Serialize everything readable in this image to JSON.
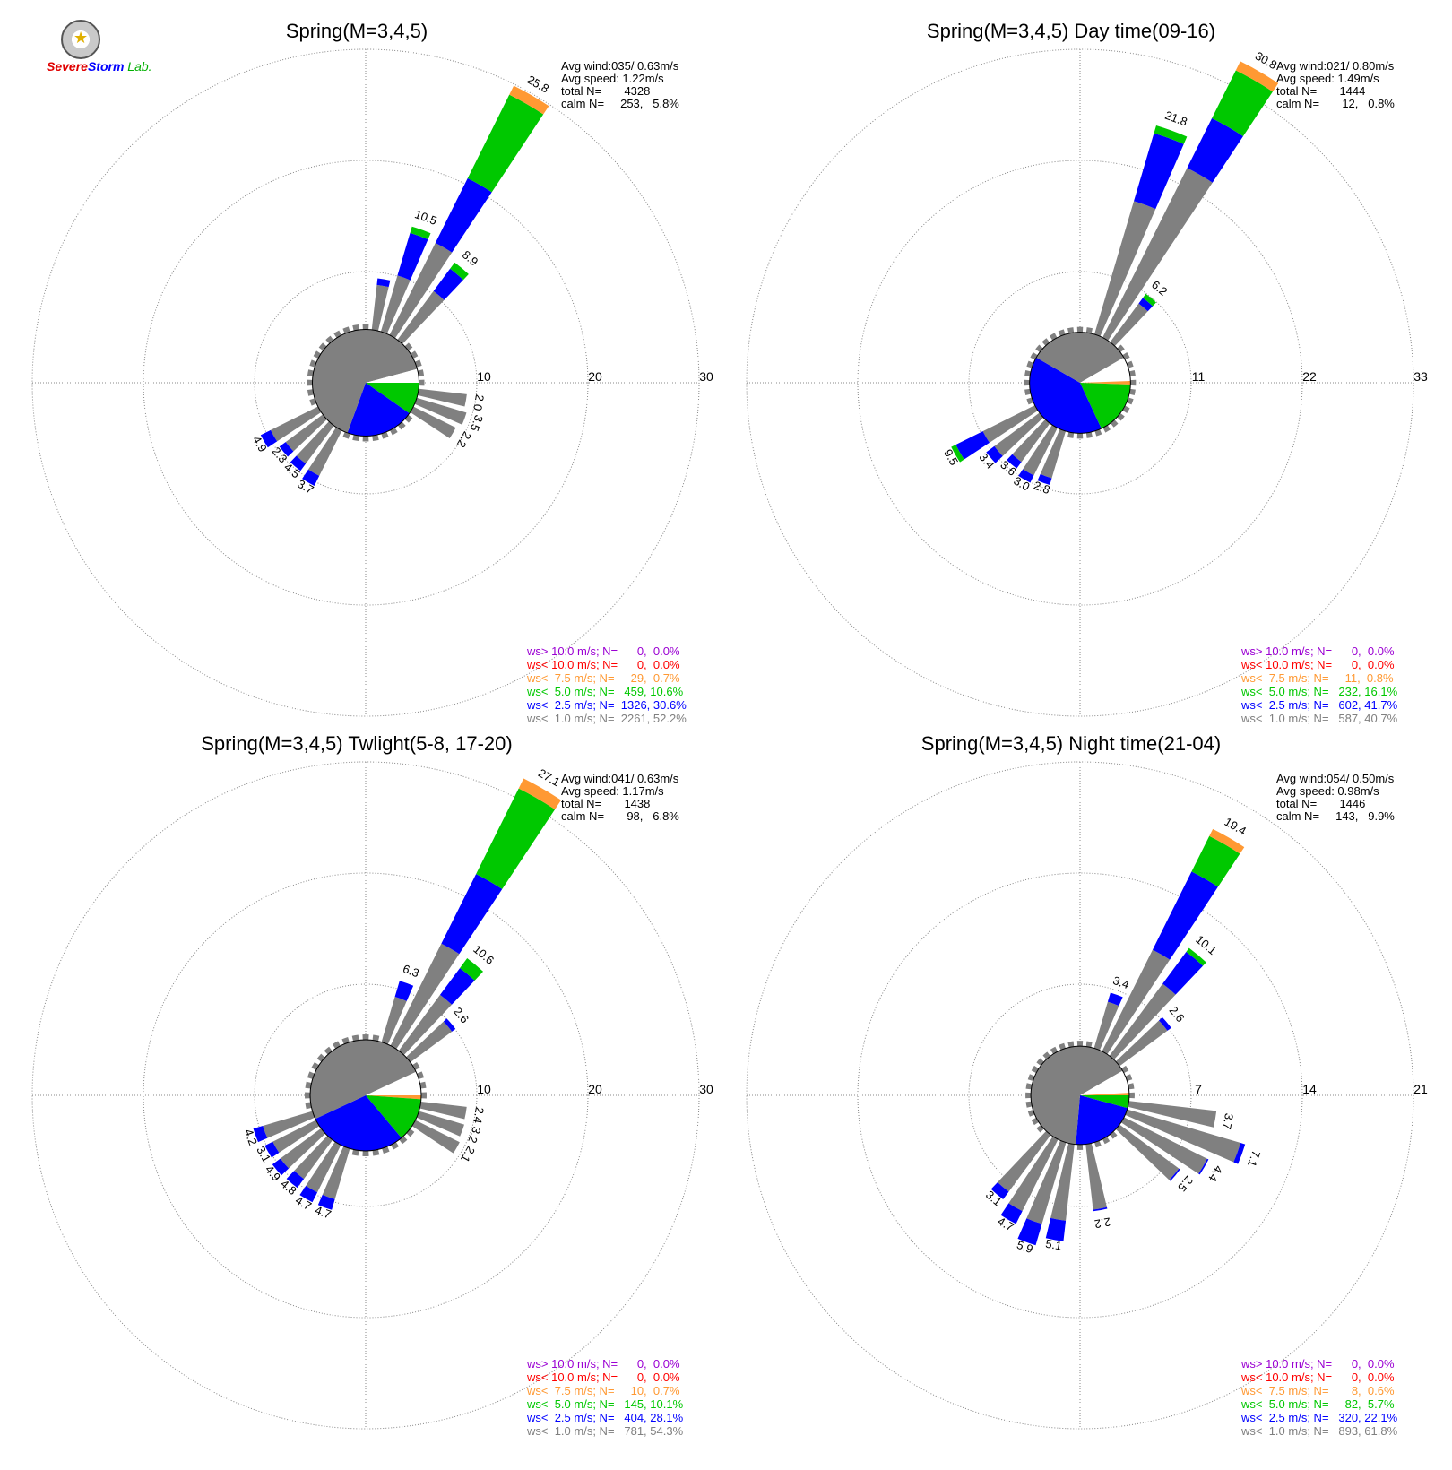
{
  "logo": {
    "text_severe": "Severe",
    "text_storm": "Storm",
    "text_lab": "Lab."
  },
  "colors": {
    "ws_gt_10": "#9b00d3",
    "ws_lt_10": "#ff0000",
    "ws_lt_7_5": "#ff9933",
    "ws_lt_5": "#00c800",
    "ws_lt_2_5": "#0000ff",
    "ws_lt_1": "#808080",
    "grid": "#888888"
  },
  "chart_data": [
    {
      "type": "windrose",
      "title": "Spring(M=3,4,5)",
      "ring_labels": [
        "10",
        "20",
        "30"
      ],
      "rmax": 30,
      "stats": [
        "Avg wind:035/ 0.63m/s",
        "Avg speed: 1.22m/s",
        "total N=       4328",
        "calm N=     253,   5.8%"
      ],
      "legend": [
        {
          "text": "ws> 10.0 m/s; N=      0,  0.0%",
          "color": "#9b00d3"
        },
        {
          "text": "ws< 10.0 m/s; N=      0,  0.0%",
          "color": "#ff0000"
        },
        {
          "text": "ws<  7.5 m/s; N=     29,  0.7%",
          "color": "#ff9933"
        },
        {
          "text": "ws<  5.0 m/s; N=   459, 10.6%",
          "color": "#00c800"
        },
        {
          "text": "ws<  2.5 m/s; N=  1326, 30.6%",
          "color": "#0000ff"
        },
        {
          "text": "ws<  1.0 m/s; N=  2261, 52.2%",
          "color": "#808080"
        }
      ],
      "sectors_deg": [
        {
          "dir": 10,
          "g": 4.3,
          "b": 0.6,
          "gr": 0,
          "o": 0
        },
        {
          "dir": 20,
          "g": 5.5,
          "b": 4.0,
          "gr": 0.6,
          "o": 0,
          "label": "10.5"
        },
        {
          "dir": 30,
          "g": 9.5,
          "b": 6.5,
          "gr": 8.4,
          "o": 0.9,
          "label": "25.8"
        },
        {
          "dir": 40,
          "g": 5.7,
          "b": 2.5,
          "gr": 0.7,
          "o": 0,
          "label": "8.9"
        },
        {
          "dir": 100,
          "g": 4.6,
          "b": 0,
          "gr": 0,
          "o": 0,
          "label": "2.0"
        },
        {
          "dir": 110,
          "g": 4.9,
          "b": 0,
          "gr": 0,
          "o": 0,
          "label": "3.5"
        },
        {
          "dir": 120,
          "g": 4.5,
          "b": 0,
          "gr": 0,
          "o": 0,
          "label": "2.2"
        },
        {
          "dir": 210,
          "g": 4.8,
          "b": 1.0,
          "gr": 0,
          "o": 0,
          "label": "3.7"
        },
        {
          "dir": 220,
          "g": 4.5,
          "b": 0.8,
          "gr": 0,
          "o": 0,
          "label": "4.5"
        },
        {
          "dir": 230,
          "g": 4.4,
          "b": 0.7,
          "gr": 0,
          "o": 0,
          "label": "2.3"
        },
        {
          "dir": 240,
          "g": 5.0,
          "b": 1.0,
          "gr": 0,
          "o": 0,
          "label": "4.9"
        }
      ],
      "inner_pie": [
        {
          "start": 0,
          "end": 75,
          "r": 4.8,
          "color": "#808080"
        },
        {
          "start": 75,
          "end": 90,
          "r": 4.8,
          "color": "#ffffff"
        },
        {
          "start": 90,
          "end": 125,
          "r": 4.8,
          "color": "#00c800"
        },
        {
          "start": 125,
          "end": 200,
          "r": 4.8,
          "color": "#0000ff"
        },
        {
          "start": 200,
          "end": 360,
          "r": 4.8,
          "color": "#808080"
        }
      ]
    },
    {
      "type": "windrose",
      "title": "Spring(M=3,4,5) Day time(09-16)",
      "ring_labels": [
        "11",
        "22",
        "33"
      ],
      "rmax": 33,
      "stats": [
        "Avg wind:021/ 0.80m/s",
        "Avg speed: 1.49m/s",
        "total N=       1444",
        "calm N=       12,   0.8%"
      ],
      "legend": [
        {
          "text": "ws> 10.0 m/s; N=      0,  0.0%",
          "color": "#9b00d3"
        },
        {
          "text": "ws< 10.0 m/s; N=      0,  0.0%",
          "color": "#ff0000"
        },
        {
          "text": "ws<  7.5 m/s; N=     11,  0.8%",
          "color": "#ff9933"
        },
        {
          "text": "ws<  5.0 m/s; N=   232, 16.1%",
          "color": "#00c800"
        },
        {
          "text": "ws<  2.5 m/s; N=   602, 41.7%",
          "color": "#0000ff"
        },
        {
          "text": "ws<  1.0 m/s; N=   587, 40.7%",
          "color": "#808080"
        }
      ],
      "sectors_deg": [
        {
          "dir": 20,
          "g": 14.0,
          "b": 7.0,
          "gr": 0.8,
          "o": 0,
          "label": "21.8"
        },
        {
          "dir": 30,
          "g": 19.0,
          "b": 5.5,
          "gr": 5.3,
          "o": 1.0,
          "label": "30.8"
        },
        {
          "dir": 40,
          "g": 5.0,
          "b": 0.7,
          "gr": 0.5,
          "o": 0,
          "label": "6.2"
        },
        {
          "dir": 200,
          "g": 5.1,
          "b": 0.7,
          "gr": 0,
          "o": 0,
          "label": "2.8"
        },
        {
          "dir": 210,
          "g": 5.5,
          "b": 0.8,
          "gr": 0,
          "o": 0,
          "label": "3.0"
        },
        {
          "dir": 220,
          "g": 5.0,
          "b": 0.8,
          "gr": 0,
          "o": 0,
          "label": "3.6"
        },
        {
          "dir": 230,
          "g": 5.8,
          "b": 1.0,
          "gr": 0,
          "o": 0,
          "label": "3.4"
        },
        {
          "dir": 240,
          "g": 6.0,
          "b": 3.0,
          "gr": 0.5,
          "o": 0,
          "label": "9.5"
        }
      ],
      "inner_pie": [
        {
          "start": 0,
          "end": 60,
          "r": 5.0,
          "color": "#808080"
        },
        {
          "start": 60,
          "end": 88,
          "r": 5.0,
          "color": "#ffffff"
        },
        {
          "start": 88,
          "end": 92,
          "r": 5.0,
          "color": "#ff9933"
        },
        {
          "start": 92,
          "end": 155,
          "r": 5.0,
          "color": "#00c800"
        },
        {
          "start": 155,
          "end": 300,
          "r": 5.0,
          "color": "#0000ff"
        },
        {
          "start": 300,
          "end": 360,
          "r": 5.0,
          "color": "#808080"
        }
      ]
    },
    {
      "type": "windrose",
      "title": "Spring(M=3,4,5) Twlight(5-8, 17-20)",
      "ring_labels": [
        "10",
        "20",
        "30"
      ],
      "rmax": 30,
      "stats": [
        "Avg wind:041/ 0.63m/s",
        "Avg speed: 1.17m/s",
        "total N=       1438",
        "calm N=       98,   6.8%"
      ],
      "legend": [
        {
          "text": "ws> 10.0 m/s; N=      0,  0.0%",
          "color": "#9b00d3"
        },
        {
          "text": "ws< 10.0 m/s; N=      0,  0.0%",
          "color": "#ff0000"
        },
        {
          "text": "ws<  7.5 m/s; N=     10,  0.7%",
          "color": "#ff9933"
        },
        {
          "text": "ws<  5.0 m/s; N=   145, 10.1%",
          "color": "#00c800"
        },
        {
          "text": "ws<  2.5 m/s; N=   404, 28.1%",
          "color": "#0000ff"
        },
        {
          "text": "ws<  1.0 m/s; N=   781, 54.3%",
          "color": "#808080"
        }
      ],
      "sectors_deg": [
        {
          "dir": 20,
          "g": 4.5,
          "b": 1.5,
          "gr": 0,
          "o": 0,
          "label": "6.3"
        },
        {
          "dir": 30,
          "g": 10.5,
          "b": 7.0,
          "gr": 8.6,
          "o": 1.0,
          "label": "27.1"
        },
        {
          "dir": 40,
          "g": 6.5,
          "b": 3.0,
          "gr": 1.1,
          "o": 0,
          "label": "10.6"
        },
        {
          "dir": 50,
          "g": 4.9,
          "b": 0.4,
          "gr": 0,
          "o": 0,
          "label": "2.6"
        },
        {
          "dir": 100,
          "g": 4.4,
          "b": 0,
          "gr": 0,
          "o": 0,
          "label": "2.4"
        },
        {
          "dir": 110,
          "g": 4.5,
          "b": 0,
          "gr": 0,
          "o": 0,
          "label": "3.2"
        },
        {
          "dir": 120,
          "g": 4.7,
          "b": 0,
          "gr": 0,
          "o": 0,
          "label": "2.1"
        },
        {
          "dir": 200,
          "g": 5.0,
          "b": 1.0,
          "gr": 0,
          "o": 0,
          "label": "4.7"
        },
        {
          "dir": 210,
          "g": 5.0,
          "b": 1.0,
          "gr": 0,
          "o": 0,
          "label": "4.7"
        },
        {
          "dir": 220,
          "g": 4.6,
          "b": 1.0,
          "gr": 0,
          "o": 0,
          "label": "4.8"
        },
        {
          "dir": 230,
          "g": 4.8,
          "b": 0.9,
          "gr": 0,
          "o": 0,
          "label": "4.9"
        },
        {
          "dir": 240,
          "g": 4.6,
          "b": 0.8,
          "gr": 0,
          "o": 0,
          "label": "3.1"
        },
        {
          "dir": 250,
          "g": 4.9,
          "b": 0.9,
          "gr": 0,
          "o": 0,
          "label": "4.2"
        }
      ],
      "inner_pie": [
        {
          "start": 0,
          "end": 65,
          "r": 5.0,
          "color": "#808080"
        },
        {
          "start": 65,
          "end": 90,
          "r": 5.0,
          "color": "#ffffff"
        },
        {
          "start": 90,
          "end": 94,
          "r": 5.0,
          "color": "#ff9933"
        },
        {
          "start": 94,
          "end": 140,
          "r": 5.0,
          "color": "#00c800"
        },
        {
          "start": 140,
          "end": 245,
          "r": 5.0,
          "color": "#0000ff"
        },
        {
          "start": 245,
          "end": 360,
          "r": 5.0,
          "color": "#808080"
        }
      ]
    },
    {
      "type": "windrose",
      "title": "Spring(M=3,4,5) Night time(21-04)",
      "ring_labels": [
        "7",
        "14",
        "21"
      ],
      "rmax": 21,
      "stats": [
        "Avg wind:054/ 0.50m/s",
        "Avg speed: 0.98m/s",
        "total N=       1446",
        "calm N=     143,   9.9%"
      ],
      "legend": [
        {
          "text": "ws> 10.0 m/s; N=      0,  0.0%",
          "color": "#9b00d3"
        },
        {
          "text": "ws< 10.0 m/s; N=      0,  0.0%",
          "color": "#ff0000"
        },
        {
          "text": "ws<  7.5 m/s; N=       8,  0.6%",
          "color": "#ff9933"
        },
        {
          "text": "ws<  5.0 m/s; N=     82,  5.7%",
          "color": "#00c800"
        },
        {
          "text": "ws<  2.5 m/s; N=   320, 22.1%",
          "color": "#0000ff"
        },
        {
          "text": "ws<  1.0 m/s; N=   893, 61.8%",
          "color": "#808080"
        }
      ],
      "sectors_deg": [
        {
          "dir": 20,
          "g": 3.2,
          "b": 0.6,
          "gr": 0,
          "o": 0,
          "label": "3.4"
        },
        {
          "dir": 30,
          "g": 7.3,
          "b": 5.5,
          "gr": 2.5,
          "o": 0.5,
          "label": "19.4"
        },
        {
          "dir": 40,
          "g": 5.8,
          "b": 2.5,
          "gr": 0.3,
          "o": 0,
          "label": "10.1"
        },
        {
          "dir": 50,
          "g": 3.9,
          "b": 0.3,
          "gr": 0,
          "o": 0,
          "label": "2.6"
        },
        {
          "dir": 100,
          "g": 5.7,
          "b": 0,
          "gr": 0,
          "o": 0,
          "label": "3.7"
        },
        {
          "dir": 110,
          "g": 7.6,
          "b": 0.3,
          "gr": 0,
          "o": 0,
          "label": "7.1"
        },
        {
          "dir": 120,
          "g": 6.0,
          "b": 0.1,
          "gr": 0,
          "o": 0,
          "label": "4.4"
        },
        {
          "dir": 130,
          "g": 4.8,
          "b": 0.1,
          "gr": 0,
          "o": 0,
          "label": "2.5"
        },
        {
          "dir": 170,
          "g": 4.3,
          "b": 0.1,
          "gr": 0,
          "o": 0,
          "label": "2.2"
        },
        {
          "dir": 190,
          "g": 5.0,
          "b": 1.3,
          "gr": 0,
          "o": 0,
          "label": "5.1"
        },
        {
          "dir": 200,
          "g": 5.5,
          "b": 1.4,
          "gr": 0,
          "o": 0,
          "label": "5.9"
        },
        {
          "dir": 210,
          "g": 5.2,
          "b": 0.9,
          "gr": 0,
          "o": 0,
          "label": "4.7"
        },
        {
          "dir": 220,
          "g": 4.6,
          "b": 0.6,
          "gr": 0,
          "o": 0,
          "label": "3.1"
        }
      ],
      "inner_pie": [
        {
          "start": 0,
          "end": 60,
          "r": 3.1,
          "color": "#808080"
        },
        {
          "start": 60,
          "end": 87,
          "r": 3.1,
          "color": "#ffffff"
        },
        {
          "start": 87,
          "end": 90,
          "r": 3.1,
          "color": "#ff9933"
        },
        {
          "start": 90,
          "end": 105,
          "r": 3.1,
          "color": "#00c800"
        },
        {
          "start": 105,
          "end": 185,
          "r": 3.1,
          "color": "#0000ff"
        },
        {
          "start": 185,
          "end": 360,
          "r": 3.1,
          "color": "#808080"
        }
      ]
    }
  ]
}
